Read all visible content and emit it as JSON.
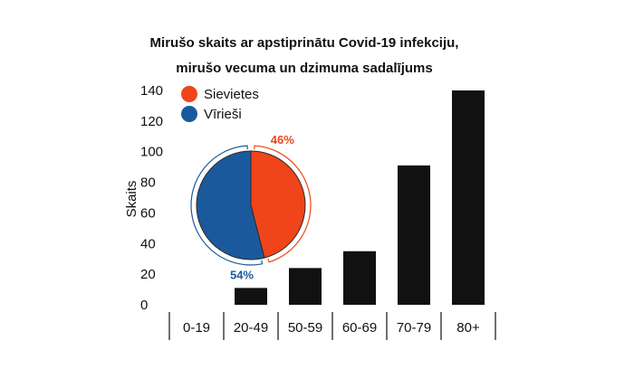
{
  "chart_data": {
    "type": "bar",
    "title_line1": "Mirušo skaits ar apstiprinātu Covid-19 infekciju,",
    "title_line2": "mirušo vecuma un dzimuma sadalījums",
    "ylabel": "Skaits",
    "xlabel": "",
    "ylim": [
      0,
      140
    ],
    "yticks": [
      0,
      20,
      40,
      60,
      80,
      100,
      120,
      140
    ],
    "categories": [
      "0-19",
      "20-49",
      "50-59",
      "60-69",
      "70-79",
      "80+"
    ],
    "values": [
      0,
      11,
      24,
      35,
      91,
      140
    ],
    "bar_color": "#111111",
    "pie": {
      "slices": [
        {
          "name": "Sievietes",
          "value": 46,
          "label": "46%",
          "color": "#f0441a"
        },
        {
          "name": "Vīrieši",
          "value": 54,
          "label": "54%",
          "color": "#1a5a9c"
        }
      ],
      "legend_placement": "top-left"
    }
  }
}
